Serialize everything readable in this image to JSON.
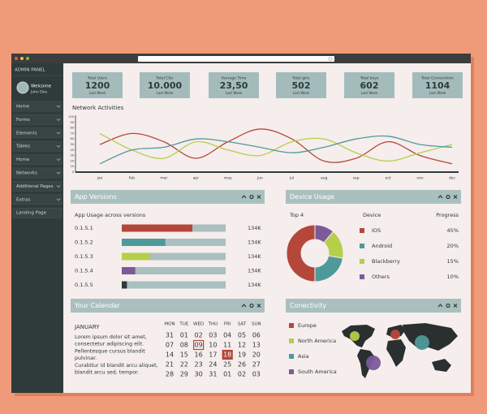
{
  "sidebar": {
    "title": "ADMIN PANEL",
    "welcome": "Welcome",
    "user": "John Doe",
    "menu": [
      "Home",
      "Forms",
      "Elements",
      "Tables",
      "Home",
      "Networks",
      "Additional Pages",
      "Extras",
      "Landing Page"
    ]
  },
  "stats": [
    {
      "label": "Total Users",
      "value": 1200,
      "sub": "Last Week"
    },
    {
      "label": "Total Clks",
      "value": "10.000",
      "sub": "Last Week"
    },
    {
      "label": "Average Time",
      "value": "23,50",
      "sub": "Last Week"
    },
    {
      "label": "Total girls",
      "value": 502,
      "sub": "Last Week"
    },
    {
      "label": "Total boys",
      "value": 602,
      "sub": "Last Week"
    },
    {
      "label": "Total Connections",
      "value": 1104,
      "sub": "Last Week"
    }
  ],
  "network": {
    "title": "Network Activities",
    "x": [
      "jan",
      "feb",
      "mar",
      "apr",
      "may",
      "jun",
      "jul",
      "aug",
      "sep",
      "oct",
      "nov",
      "dec"
    ],
    "ylim": [
      0,
      100
    ],
    "yticks": [
      0,
      10,
      20,
      30,
      40,
      50,
      60,
      70,
      80,
      90,
      100
    ],
    "series": [
      {
        "color": "#b5473a",
        "values": [
          50,
          70,
          55,
          25,
          55,
          78,
          60,
          20,
          25,
          55,
          30,
          15
        ]
      },
      {
        "color": "#b5cf4a",
        "values": [
          70,
          40,
          25,
          55,
          40,
          30,
          55,
          60,
          35,
          20,
          35,
          50
        ]
      },
      {
        "color": "#4e9a9a",
        "values": [
          15,
          40,
          45,
          60,
          55,
          45,
          35,
          45,
          60,
          65,
          50,
          45
        ]
      }
    ]
  },
  "app_versions": {
    "title": "App Versions",
    "subtitle": "App Usage across versions",
    "rows": [
      {
        "version": "0.1.5.1",
        "usage": 68,
        "label": "134K",
        "color": "#b5473a"
      },
      {
        "version": "0.1.5.2",
        "usage": 42,
        "label": "134K",
        "color": "#4e9a9a"
      },
      {
        "version": "0.1.5.3",
        "usage": 27,
        "label": "134K",
        "color": "#b5cf4a"
      },
      {
        "version": "0.1.5.4",
        "usage": 13,
        "label": "134K",
        "color": "#7b5a9a"
      },
      {
        "version": "0.1.5.5",
        "usage": 5,
        "label": "134K",
        "color": "#2f3a3a"
      }
    ]
  },
  "device_usage": {
    "title": "Device Usage",
    "top": "Top 4",
    "device_header": "Device",
    "progress_header": "Progress",
    "devices": [
      {
        "name": "IOS",
        "value": 45,
        "label": "45%",
        "color": "#b5473a"
      },
      {
        "name": "Android",
        "value": 20,
        "label": "20%",
        "color": "#4e9a9a"
      },
      {
        "name": "Blackberry",
        "value": 15,
        "label": "15%",
        "color": "#b5cf4a"
      },
      {
        "name": "Others",
        "value": 10,
        "label": "10%",
        "color": "#7b5a9a"
      }
    ]
  },
  "calendar": {
    "title": "Your Calendar",
    "month": "JANUARY",
    "text": [
      "Lorem ipsum dolor sit amet,",
      "consectetur adipiscing elit.",
      "Pellentesque cursus blandit",
      "pulvinar.",
      "Curabitur id blandit arcu aliquet,",
      "blandit arcu sed, tempor."
    ],
    "days": [
      "MON",
      "TUE",
      "WED",
      "THU",
      "FRI",
      "SAT",
      "SUN"
    ],
    "weeks": [
      [
        "31",
        "01",
        "02",
        "03",
        "04",
        "05",
        "06"
      ],
      [
        "07",
        "08",
        "09",
        "10",
        "11",
        "12",
        "13"
      ],
      [
        "14",
        "15",
        "16",
        "17",
        "18",
        "19",
        "20"
      ],
      [
        "21",
        "22",
        "23",
        "24",
        "25",
        "26",
        "27"
      ],
      [
        "28",
        "29",
        "30",
        "31",
        "01",
        "02",
        "03"
      ]
    ]
  },
  "connectivity": {
    "title": "Conectivity",
    "regions": [
      {
        "name": "Europe",
        "color": "#b5473a"
      },
      {
        "name": "North America",
        "color": "#b5cf4a"
      },
      {
        "name": "Asia",
        "color": "#4e9a9a"
      },
      {
        "name": "South America",
        "color": "#7b5a9a"
      }
    ]
  }
}
